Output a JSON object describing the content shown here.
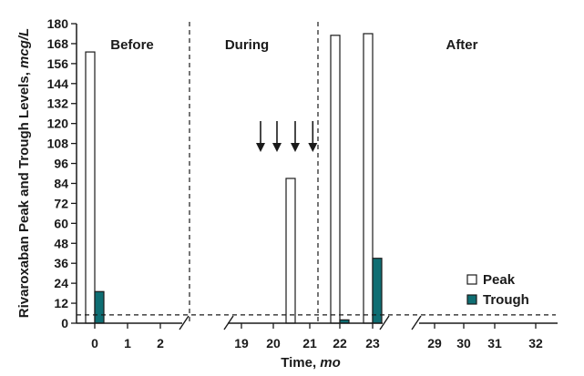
{
  "chart_data": {
    "type": "bar",
    "title": "",
    "ylabel": "Rivaroxaban Peak and Trough Levels,",
    "ylabel_unit": "mcg/L",
    "xlabel": "Time,",
    "xlabel_unit": "mo",
    "ylim": [
      0,
      180
    ],
    "ytick_step": 12,
    "x_tick_labels": [
      "0",
      "1",
      "2",
      "19",
      "20",
      "21",
      "22",
      "23",
      "29",
      "30",
      "31",
      "32"
    ],
    "phases": [
      "Before",
      "During",
      "After"
    ],
    "series": [
      {
        "name": "Peak",
        "style": "open",
        "color": "#ffffff",
        "points": [
          {
            "x": "0",
            "value": 163
          },
          {
            "x": "20.6",
            "value": 87
          },
          {
            "x": "22",
            "value": 173
          },
          {
            "x": "23",
            "value": 174
          }
        ]
      },
      {
        "name": "Trough",
        "style": "filled",
        "color": "#0f6e73",
        "points": [
          {
            "x": "0",
            "value": 19
          },
          {
            "x": "22",
            "value": 2
          },
          {
            "x": "23",
            "value": 39
          }
        ]
      }
    ],
    "reference_line_y": 5,
    "arrow_months": [
      19.6,
      20.1,
      20.6,
      21.1
    ],
    "legend": {
      "position": "bottom-right",
      "entries": [
        "Peak",
        "Trough"
      ]
    },
    "grid": false
  }
}
